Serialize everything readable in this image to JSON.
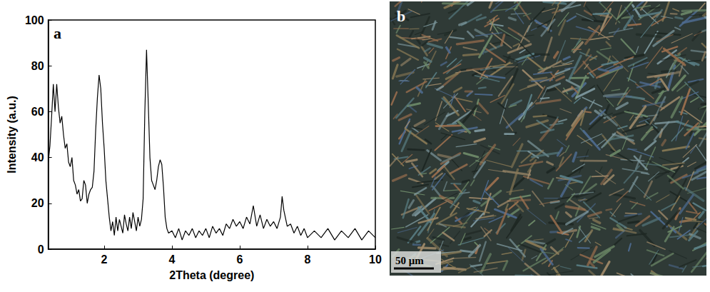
{
  "chart_data": {
    "type": "line",
    "label": "a",
    "x_label": "2Theta (degree)",
    "y_label": "Intensity (a.u.)",
    "x": [
      0.35,
      0.4,
      0.45,
      0.5,
      0.55,
      0.6,
      0.65,
      0.7,
      0.75,
      0.8,
      0.85,
      0.9,
      0.95,
      1.0,
      1.05,
      1.1,
      1.15,
      1.2,
      1.25,
      1.3,
      1.35,
      1.4,
      1.45,
      1.5,
      1.55,
      1.6,
      1.65,
      1.7,
      1.75,
      1.8,
      1.85,
      1.9,
      1.95,
      2.0,
      2.05,
      2.1,
      2.15,
      2.2,
      2.25,
      2.3,
      2.35,
      2.4,
      2.45,
      2.5,
      2.55,
      2.6,
      2.65,
      2.7,
      2.75,
      2.8,
      2.85,
      2.9,
      2.95,
      3.0,
      3.05,
      3.1,
      3.15,
      3.2,
      3.25,
      3.3,
      3.35,
      3.4,
      3.45,
      3.5,
      3.55,
      3.6,
      3.65,
      3.7,
      3.75,
      3.8,
      3.85,
      3.9,
      4.0,
      4.1,
      4.2,
      4.3,
      4.4,
      4.5,
      4.6,
      4.7,
      4.8,
      4.9,
      5.0,
      5.1,
      5.2,
      5.3,
      5.4,
      5.5,
      5.6,
      5.7,
      5.8,
      5.9,
      6.0,
      6.1,
      6.2,
      6.3,
      6.4,
      6.5,
      6.6,
      6.7,
      6.8,
      6.9,
      7.0,
      7.1,
      7.2,
      7.25,
      7.3,
      7.4,
      7.5,
      7.6,
      7.7,
      7.8,
      7.9,
      8.0,
      8.2,
      8.4,
      8.6,
      8.8,
      9.0,
      9.2,
      9.4,
      9.6,
      9.8,
      10.0
    ],
    "values": [
      38,
      45,
      58,
      72,
      60,
      72,
      62,
      55,
      58,
      50,
      44,
      46,
      38,
      36,
      40,
      30,
      28,
      24,
      26,
      21,
      22,
      30,
      28,
      20,
      24,
      26,
      27,
      34,
      52,
      66,
      76,
      70,
      55,
      44,
      30,
      22,
      14,
      8,
      12,
      6,
      14,
      8,
      13,
      10,
      7,
      15,
      11,
      8,
      14,
      9,
      16,
      12,
      8,
      14,
      10,
      13,
      22,
      60,
      87,
      64,
      40,
      30,
      28,
      26,
      30,
      36,
      39,
      37,
      27,
      14,
      9,
      7,
      8,
      5,
      9,
      4,
      8,
      6,
      9,
      5,
      8,
      6,
      9,
      5,
      10,
      7,
      9,
      6,
      11,
      9,
      13,
      10,
      12,
      9,
      14,
      11,
      19,
      10,
      15,
      9,
      13,
      10,
      12,
      9,
      14,
      23,
      17,
      10,
      11,
      7,
      10,
      6,
      9,
      5,
      8,
      5,
      9,
      4,
      8,
      5,
      9,
      4,
      8,
      5
    ],
    "color": "#000000",
    "xlim": [
      0.35,
      10
    ],
    "xticks": [
      2,
      4,
      6,
      8,
      10
    ],
    "ylim": [
      0,
      100
    ],
    "yticks": [
      0,
      20,
      40,
      60,
      80,
      100
    ],
    "grid": false
  },
  "image": {
    "label": "b",
    "scale_bar": "50 μm"
  }
}
